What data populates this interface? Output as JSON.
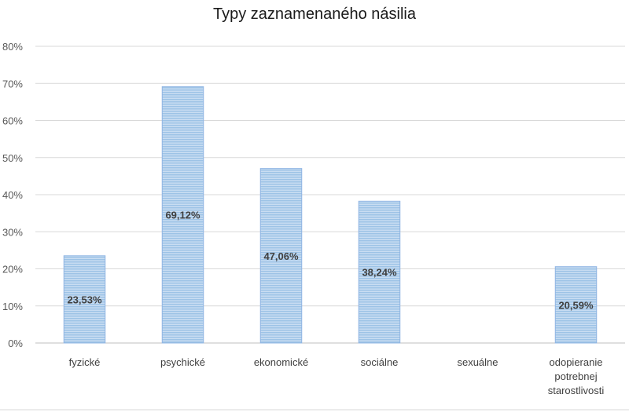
{
  "chart_data": {
    "type": "bar",
    "title": "Typy zaznamenaného násilia",
    "xlabel": "",
    "ylabel": "",
    "categories": [
      [
        "fyzické"
      ],
      [
        "psychické"
      ],
      [
        "ekonomické"
      ],
      [
        "sociálne"
      ],
      [
        "sexuálne"
      ],
      [
        "odopieranie",
        "potrebnej",
        "starostlivosti"
      ]
    ],
    "values": [
      23.53,
      69.12,
      47.06,
      38.24,
      0,
      20.59
    ],
    "data_labels": [
      "23,53%",
      "69,12%",
      "47,06%",
      "38,24%",
      "",
      "20,59%"
    ],
    "ylim": [
      0,
      80
    ],
    "yticks": [
      0,
      10,
      20,
      30,
      40,
      50,
      60,
      70,
      80
    ],
    "ytick_labels": [
      "0%",
      "10%",
      "20%",
      "30%",
      "40%",
      "50%",
      "60%",
      "70%",
      "80%"
    ],
    "grid": true,
    "legend": "none",
    "bar_color": "#9dc3e6",
    "bar_stripe_color": "#c9ddf2"
  }
}
